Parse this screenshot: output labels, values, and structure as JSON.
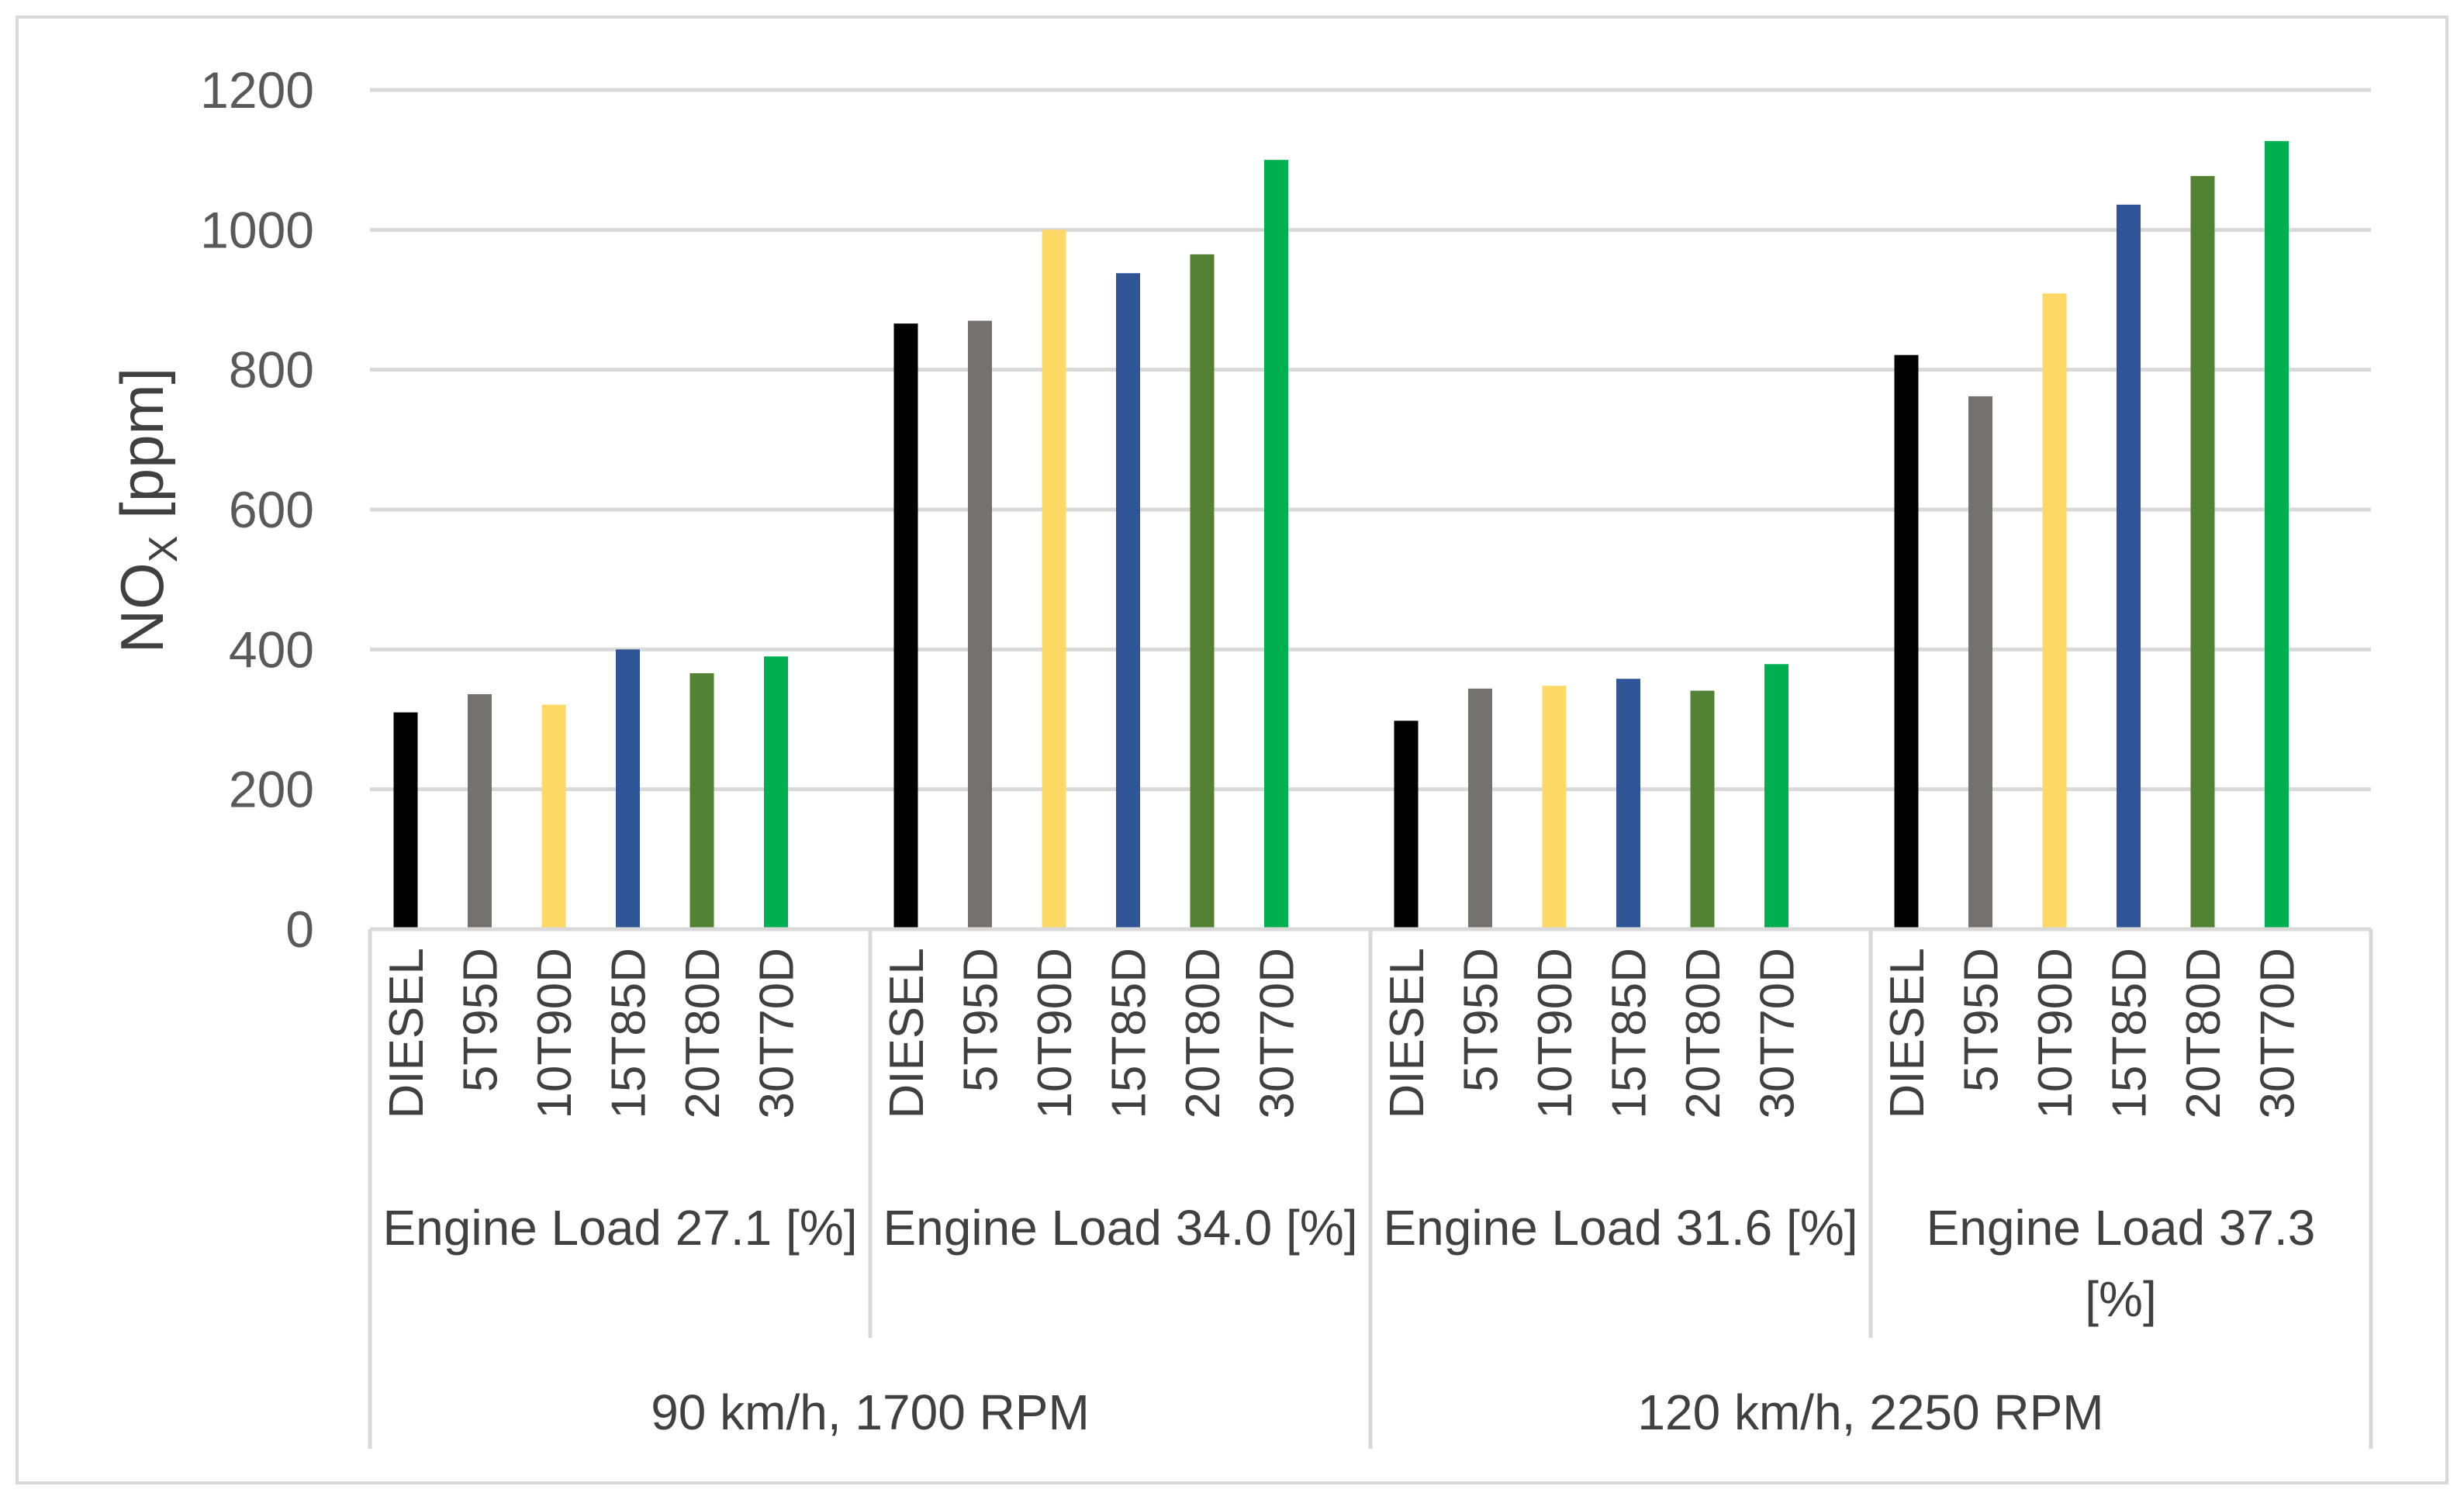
{
  "chart_data": {
    "type": "bar",
    "title": "",
    "ylabel": "NOX [ppm]",
    "ylabel_main": "NO",
    "ylabel_sub": "X",
    "ylabel_unit": " [ppm]",
    "ylim": [
      0,
      1200
    ],
    "yticks": [
      0,
      200,
      400,
      600,
      800,
      1000,
      1200
    ],
    "grid": true,
    "legend": "none",
    "fuels": [
      "DIESEL",
      "5T95D",
      "10T90D",
      "15T85D",
      "20T80D",
      "30T70D"
    ],
    "colors": [
      "#000000",
      "#767171",
      "#FFD966",
      "#2F5597",
      "#548235",
      "#00B050"
    ],
    "groups": [
      {
        "label": "Engine Load 27.1 [%]",
        "label_lines": [
          "Engine Load 27.1 [%]"
        ],
        "values": [
          310,
          336,
          321,
          400,
          366,
          390
        ]
      },
      {
        "label": "Engine Load 34.0 [%]",
        "label_lines": [
          "Engine Load 34.0 [%]"
        ],
        "values": [
          866,
          870,
          1000,
          938,
          965,
          1100
        ]
      },
      {
        "label": "Engine Load 31.6 [%]",
        "label_lines": [
          "Engine Load 31.6 [%]"
        ],
        "values": [
          298,
          344,
          348,
          358,
          341,
          379
        ]
      },
      {
        "label": "Engine Load 37.3 [%]",
        "label_lines": [
          "Engine Load 37.3",
          "[%]"
        ],
        "values": [
          821,
          762,
          909,
          1036,
          1077,
          1127
        ]
      }
    ],
    "speed_groups": [
      {
        "label": "90 km/h, 1700 RPM"
      },
      {
        "label": "120 km/h, 2250 RPM"
      }
    ]
  }
}
